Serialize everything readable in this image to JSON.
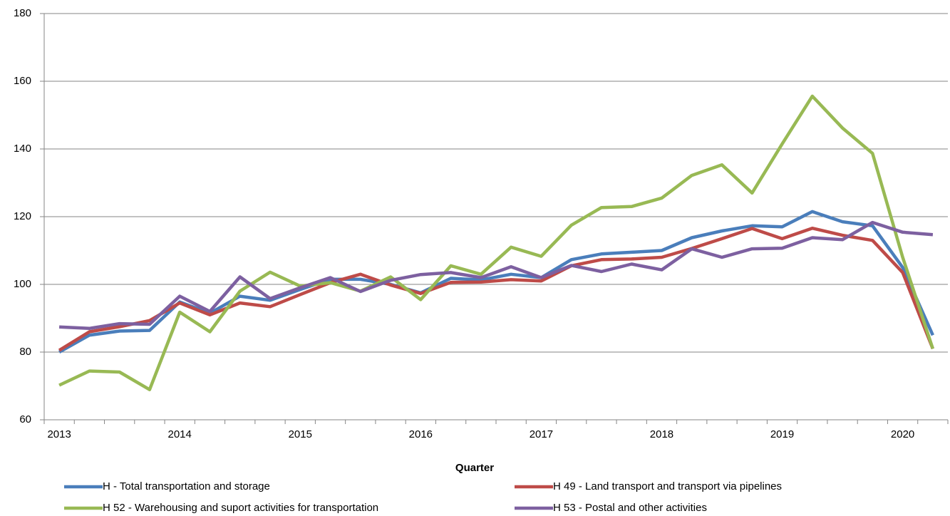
{
  "chart_data": {
    "type": "line",
    "x_label": "Quarter",
    "categories": [
      "2013",
      null,
      null,
      null,
      "2014",
      null,
      null,
      null,
      "2015",
      null,
      null,
      null,
      "2016",
      null,
      null,
      null,
      "2017",
      null,
      null,
      null,
      "2018",
      null,
      null,
      null,
      "2019",
      null,
      null,
      null,
      "2020",
      null
    ],
    "series": [
      {
        "name": "H - Total transportation and storage",
        "color": "#4a7ebb",
        "values": [
          80.0,
          85.0,
          86.2,
          86.4,
          94.8,
          91.5,
          96.5,
          95.3,
          98.5,
          101.5,
          101.5,
          100.0,
          97.5,
          101.8,
          101.3,
          103.0,
          102.0,
          107.3,
          109.0,
          109.5,
          110.0,
          113.8,
          115.8,
          117.3,
          117.0,
          121.5,
          118.5,
          117.3,
          105.0,
          85.0
        ]
      },
      {
        "name": "H 49 - Land transport and transport via pipelines",
        "color": "#be4b48",
        "values": [
          80.5,
          86.0,
          87.5,
          89.3,
          94.5,
          91.0,
          94.5,
          93.4,
          97.0,
          100.5,
          103.0,
          99.8,
          97.3,
          100.6,
          100.7,
          101.4,
          101.0,
          105.5,
          107.3,
          107.5,
          108.0,
          110.6,
          113.5,
          116.5,
          113.5,
          116.6,
          114.5,
          113.0,
          103.5,
          81.0
        ]
      },
      {
        "name": "H 52 - Warehousing and suport activities for transportation",
        "color": "#98b954",
        "values": [
          70.2,
          74.4,
          74.1,
          68.9,
          91.8,
          86.0,
          98.0,
          103.6,
          99.5,
          100.5,
          98.0,
          102.2,
          95.5,
          105.5,
          103.0,
          111.0,
          108.3,
          117.5,
          122.7,
          123.0,
          125.5,
          132.2,
          135.3,
          127.0,
          141.5,
          155.6,
          146.2,
          138.7,
          108.0,
          81.0
        ]
      },
      {
        "name": "H 53 - Postal and other activities",
        "color": "#7d60a0",
        "values": [
          87.4,
          87.0,
          88.4,
          88.2,
          96.5,
          92.0,
          102.2,
          95.8,
          99.0,
          102.0,
          97.9,
          101.2,
          102.9,
          103.5,
          102.0,
          105.2,
          102.0,
          105.6,
          103.8,
          106.0,
          104.3,
          110.5,
          108.0,
          110.5,
          110.7,
          113.8,
          113.2,
          118.3,
          115.4,
          114.7
        ]
      }
    ],
    "ylim": [
      60,
      180
    ],
    "yticks": [
      60,
      80,
      100,
      120,
      140,
      160,
      180
    ],
    "grid": true,
    "legend": "bottom"
  }
}
